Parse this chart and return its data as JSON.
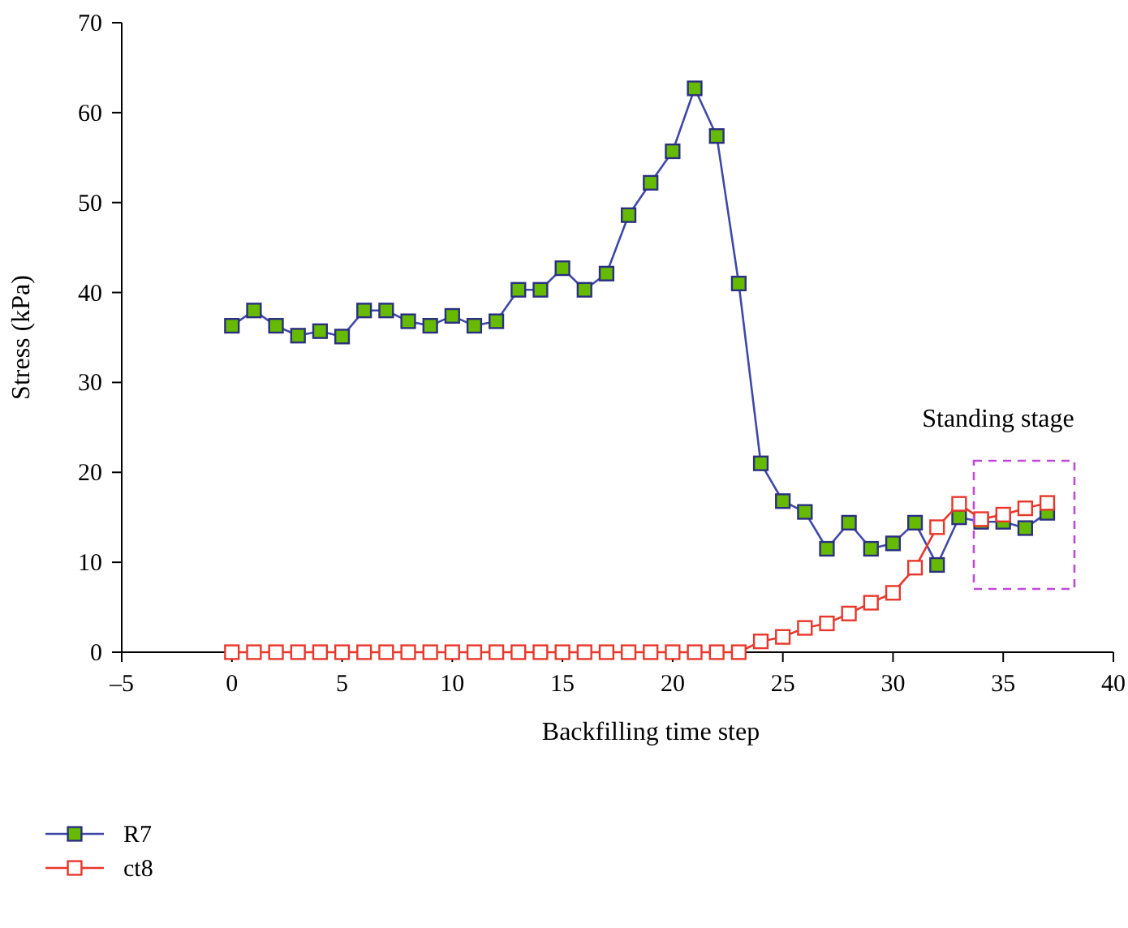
{
  "chart_data": {
    "type": "line",
    "xlabel": "Backfilling time step",
    "ylabel": "Stress (kPa)",
    "xlim": [
      -5,
      40
    ],
    "xticks": [
      {
        "value": -5,
        "label": "–5"
      },
      0,
      5,
      10,
      15,
      20,
      25,
      30,
      35,
      40
    ],
    "ylim": [
      0,
      70
    ],
    "yticks": [
      0,
      10,
      20,
      30,
      40,
      50,
      60,
      70
    ],
    "marker": "square",
    "legend": "bottom left",
    "grid": false,
    "x": [
      0,
      1,
      2,
      3,
      4,
      5,
      6,
      7,
      8,
      9,
      10,
      11,
      12,
      13,
      14,
      15,
      16,
      17,
      18,
      19,
      20,
      21,
      22,
      23,
      24,
      25,
      26,
      27,
      28,
      29,
      30,
      31,
      32,
      33,
      34,
      35,
      36,
      37
    ],
    "series": [
      {
        "name": "R7",
        "color": "#3f48a8",
        "values": [
          36.3,
          38,
          36.3,
          35.2,
          35.7,
          35.1,
          38,
          38,
          36.8,
          36.3,
          37.4,
          36.3,
          36.8,
          40.3,
          40.3,
          42.7,
          40.3,
          42.1,
          48.6,
          52.2,
          55.7,
          62.7,
          57.4,
          41,
          21,
          16.8,
          15.6,
          11.5,
          14.4,
          11.5,
          12.1,
          14.4,
          9.7,
          15,
          14.5,
          14.5,
          13.8,
          15.5
        ]
      },
      {
        "name": "ct8",
        "color": "#e8372a",
        "values": [
          0,
          0,
          0,
          0,
          0,
          0,
          0,
          0,
          0,
          0,
          0,
          0,
          0,
          0,
          0,
          0,
          0,
          0,
          0,
          0,
          0,
          0,
          0,
          0,
          1.2,
          1.7,
          2.7,
          3.2,
          4.3,
          5.5,
          6.6,
          9.4,
          13.9,
          16.5,
          14.8,
          15.3,
          16,
          16.6
        ]
      }
    ],
    "annotations": [
      "Standing stage"
    ]
  }
}
